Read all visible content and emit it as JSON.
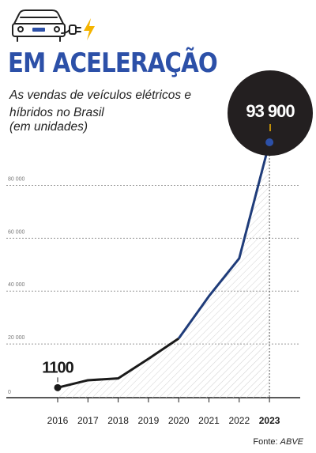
{
  "title": "EM ACELERAÇÃO",
  "subtitle": "As vendas de veículos elétricos e híbridos no Brasil",
  "unit_note": "(em unidades)",
  "source_label": "Fonte:",
  "source_name": "ABVE",
  "colors": {
    "title": "#2c50a8",
    "line": "#1f3c7a",
    "dot": "#2c50a8",
    "bubble": "#231f20",
    "highlight_tick": "#f5b400",
    "bolt": "#f5b400"
  },
  "icons": [
    "electric-car-icon",
    "plug-icon",
    "lightning-bolt-icon"
  ],
  "chart_data": {
    "type": "area",
    "title": "EM ACELERAÇÃO",
    "x": [
      "2016",
      "2017",
      "2018",
      "2019",
      "2020",
      "2021",
      "2022",
      "2023"
    ],
    "series": [
      {
        "values": [
          1100,
          3900,
          4600,
          12000,
          19700,
          35700,
          50000,
          93900
        ]
      }
    ],
    "y_tick_labels": [
      "0",
      "20 000",
      "40 000",
      "60 000",
      "80 000"
    ],
    "y_ticks": [
      0,
      20000,
      40000,
      60000,
      80000
    ],
    "ylim": [
      0,
      93900
    ],
    "grid": true,
    "highlight": {
      "category": "2023",
      "label": "93 900"
    },
    "start_label": "1100"
  }
}
